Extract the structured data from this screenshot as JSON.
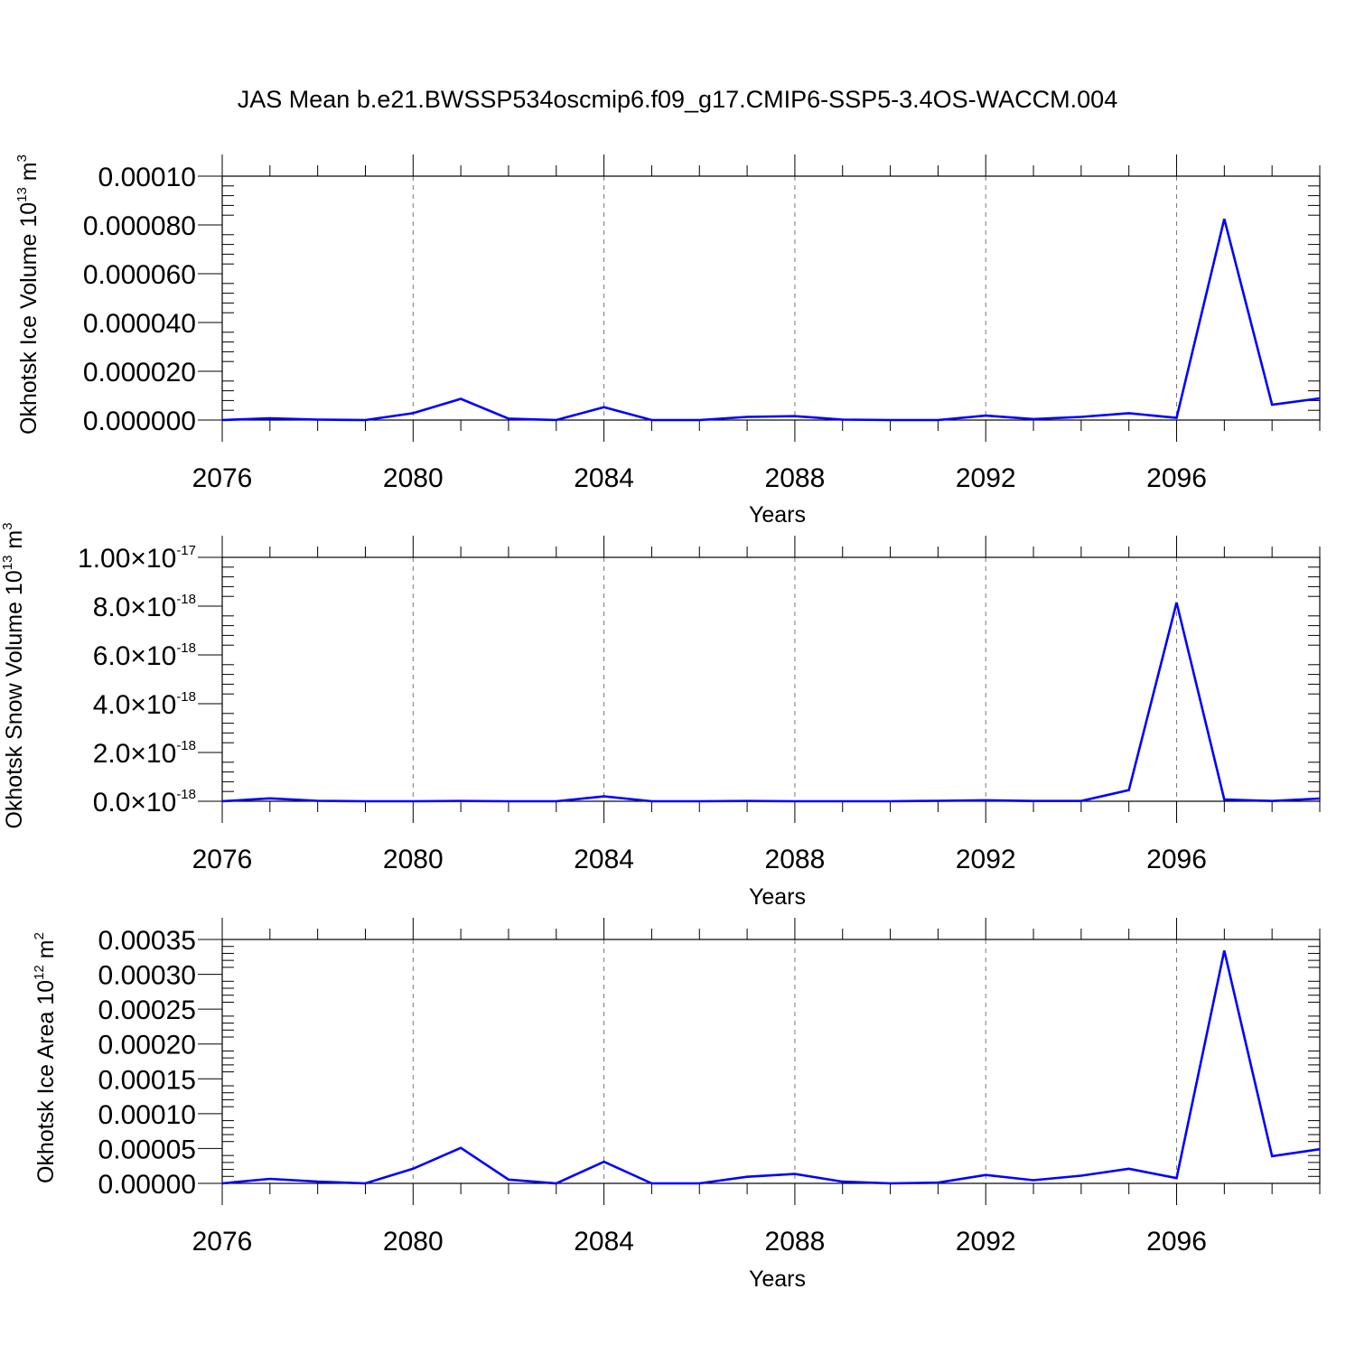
{
  "title": "JAS Mean b.e21.BWSSP534oscmip6.f09_g17.CMIP6-SSP5-3.4OS-WACCM.004",
  "colors": {
    "line": "#0000ff",
    "axis": "#000000",
    "grid": "#777777",
    "background": "#ffffff"
  },
  "chart_data": [
    {
      "type": "line",
      "xlabel": "Years",
      "ylabel": "Okhotsk Ice Volume 10",
      "ylabel_exponent": "13",
      "ylabel_unit": "m",
      "ylabel_unit_exponent": "3",
      "xlim": [
        2076,
        2099
      ],
      "ylim": [
        0,
        0.0001
      ],
      "x_ticks": [
        2076,
        2080,
        2084,
        2088,
        2092,
        2096
      ],
      "x_tick_labels": [
        "2076",
        "2080",
        "2084",
        "2088",
        "2092",
        "2096"
      ],
      "y_ticks": [
        0,
        2e-05,
        4e-05,
        6e-05,
        8e-05,
        0.0001
      ],
      "y_tick_labels": [
        {
          "mantissa": "0.000000"
        },
        {
          "mantissa": "0.000020"
        },
        {
          "mantissa": "0.000040"
        },
        {
          "mantissa": "0.000060"
        },
        {
          "mantissa": "0.000080"
        },
        {
          "mantissa": "0.00010"
        }
      ],
      "grid": "vertical dashed at major x ticks",
      "x": [
        2076,
        2077,
        2078,
        2079,
        2080,
        2081,
        2082,
        2083,
        2084,
        2085,
        2086,
        2087,
        2088,
        2089,
        2090,
        2091,
        2092,
        2093,
        2094,
        2095,
        2096,
        2097,
        2098,
        2099
      ],
      "series": [
        {
          "values": [
            0.0,
            7e-07,
            2e-07,
            0.0,
            2.8e-06,
            8.7e-06,
            6e-07,
            0.0,
            5.3e-06,
            0.0,
            0.0,
            1.3e-06,
            1.6e-06,
            2e-07,
            0.0,
            0.0,
            1.8e-06,
            4e-07,
            1.3e-06,
            2.8e-06,
            9e-07,
            8.25e-05,
            6.3e-06,
            8.9e-06
          ]
        }
      ]
    },
    {
      "type": "line",
      "xlabel": "Years",
      "ylabel": "Okhotsk Snow Volume 10",
      "ylabel_exponent": "13",
      "ylabel_unit": "m",
      "ylabel_unit_exponent": "3",
      "xlim": [
        2076,
        2099
      ],
      "ylim": [
        0,
        1e-17
      ],
      "x_ticks": [
        2076,
        2080,
        2084,
        2088,
        2092,
        2096
      ],
      "x_tick_labels": [
        "2076",
        "2080",
        "2084",
        "2088",
        "2092",
        "2096"
      ],
      "y_ticks": [
        0,
        2e-18,
        4e-18,
        6e-18,
        8e-18,
        1e-17
      ],
      "y_tick_labels": [
        {
          "mantissa": "0.0",
          "times": "×10",
          "exponent": "-18"
        },
        {
          "mantissa": "2.0",
          "times": "×10",
          "exponent": "-18"
        },
        {
          "mantissa": "4.0",
          "times": "×10",
          "exponent": "-18"
        },
        {
          "mantissa": "6.0",
          "times": "×10",
          "exponent": "-18"
        },
        {
          "mantissa": "8.0",
          "times": "×10",
          "exponent": "-18"
        },
        {
          "mantissa": "1.00",
          "times": "×10",
          "exponent": "-17"
        }
      ],
      "grid": "vertical dashed at major x ticks",
      "x": [
        2076,
        2077,
        2078,
        2079,
        2080,
        2081,
        2082,
        2083,
        2084,
        2085,
        2086,
        2087,
        2088,
        2089,
        2090,
        2091,
        2092,
        2093,
        2094,
        2095,
        2096,
        2097,
        2098,
        2099
      ],
      "series": [
        {
          "values": [
            0.0,
            1.2e-19,
            2e-20,
            0.0,
            0.0,
            1e-20,
            0.0,
            0.0,
            2e-19,
            0.0,
            0.0,
            1e-20,
            0.0,
            0.0,
            0.0,
            2e-20,
            4e-20,
            1e-20,
            1e-20,
            4.6e-19,
            8.15e-18,
            7e-20,
            1e-20,
            1.1e-19
          ]
        }
      ]
    },
    {
      "type": "line",
      "xlabel": "Years",
      "ylabel": "Okhotsk Ice Area 10",
      "ylabel_exponent": "12",
      "ylabel_unit": "m",
      "ylabel_unit_exponent": "2",
      "xlim": [
        2076,
        2099
      ],
      "ylim": [
        0,
        0.00035
      ],
      "x_ticks": [
        2076,
        2080,
        2084,
        2088,
        2092,
        2096
      ],
      "x_tick_labels": [
        "2076",
        "2080",
        "2084",
        "2088",
        "2092",
        "2096"
      ],
      "y_ticks": [
        0,
        5e-05,
        0.0001,
        0.00015,
        0.0002,
        0.00025,
        0.0003,
        0.00035
      ],
      "y_tick_labels": [
        {
          "mantissa": "0.00000"
        },
        {
          "mantissa": "0.00005"
        },
        {
          "mantissa": "0.00010"
        },
        {
          "mantissa": "0.00015"
        },
        {
          "mantissa": "0.00020"
        },
        {
          "mantissa": "0.00025"
        },
        {
          "mantissa": "0.00030"
        },
        {
          "mantissa": "0.00035"
        }
      ],
      "grid": "vertical dashed at major x ticks",
      "x": [
        2076,
        2077,
        2078,
        2079,
        2080,
        2081,
        2082,
        2083,
        2084,
        2085,
        2086,
        2087,
        2088,
        2089,
        2090,
        2091,
        2092,
        2093,
        2094,
        2095,
        2096,
        2097,
        2098,
        2099
      ],
      "series": [
        {
          "values": [
            0.0,
            6.5e-06,
            2.5e-06,
            0.0,
            2.1e-05,
            5.1e-05,
            5.5e-06,
            0.0,
            3.1e-05,
            0.0,
            0.0,
            9.5e-06,
            1.35e-05,
            2.5e-06,
            0.0,
            1e-06,
            1.2e-05,
            4.5e-06,
            1.1e-05,
            2.1e-05,
            7.5e-06,
            0.000334,
            3.9e-05,
            4.9e-05
          ]
        }
      ]
    }
  ]
}
